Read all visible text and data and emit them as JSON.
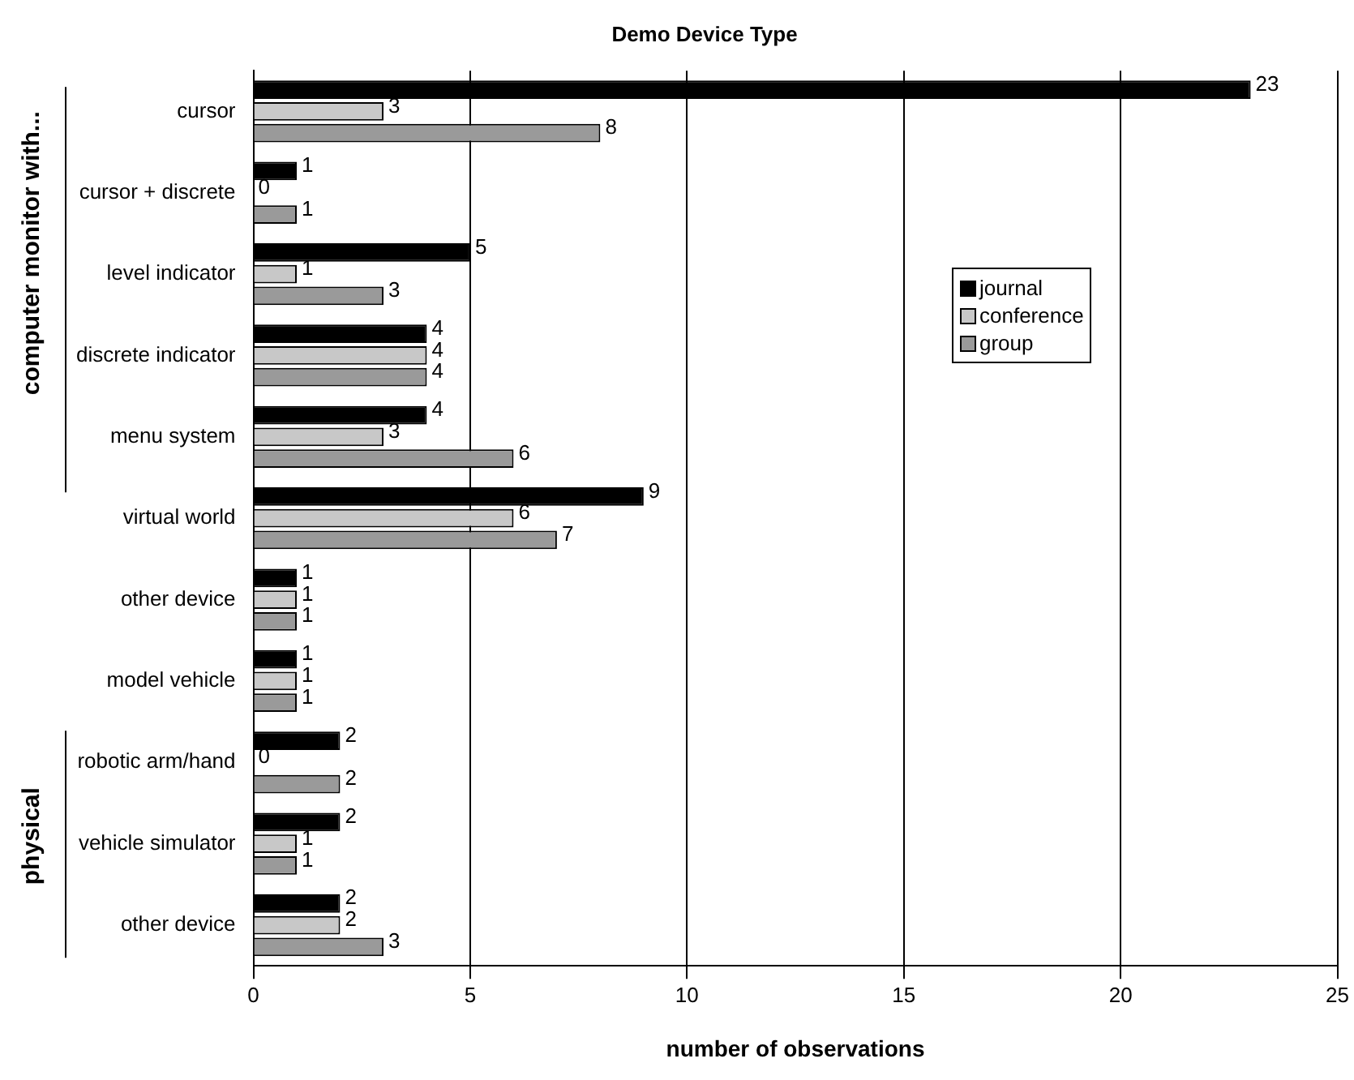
{
  "chart_data": {
    "type": "bar",
    "orientation": "horizontal",
    "title": "Demo Device Type",
    "xlabel": "number of observations",
    "categories": [
      "cursor",
      "cursor + discrete",
      "level indicator",
      "discrete indicator",
      "menu system",
      "virtual world",
      "other device",
      "model vehicle",
      "robotic arm/hand",
      "vehicle simulator",
      "other device"
    ],
    "series": [
      {
        "name": "journal",
        "color": "#000000",
        "values": [
          23,
          1,
          5,
          4,
          4,
          9,
          1,
          1,
          2,
          2,
          2
        ]
      },
      {
        "name": "conference",
        "color": "#c8c8c8",
        "values": [
          3,
          0,
          1,
          4,
          3,
          6,
          1,
          1,
          0,
          1,
          2
        ]
      },
      {
        "name": "group",
        "color": "#9a9a9a",
        "values": [
          8,
          1,
          3,
          4,
          6,
          7,
          1,
          1,
          2,
          1,
          3
        ]
      }
    ],
    "xlim": [
      0,
      25
    ],
    "xticks": [
      0,
      5,
      10,
      15,
      20,
      25
    ],
    "grid": "x",
    "legend": "right",
    "data_labels": true,
    "annotations": [
      "computer monitor with...",
      "physical"
    ]
  }
}
